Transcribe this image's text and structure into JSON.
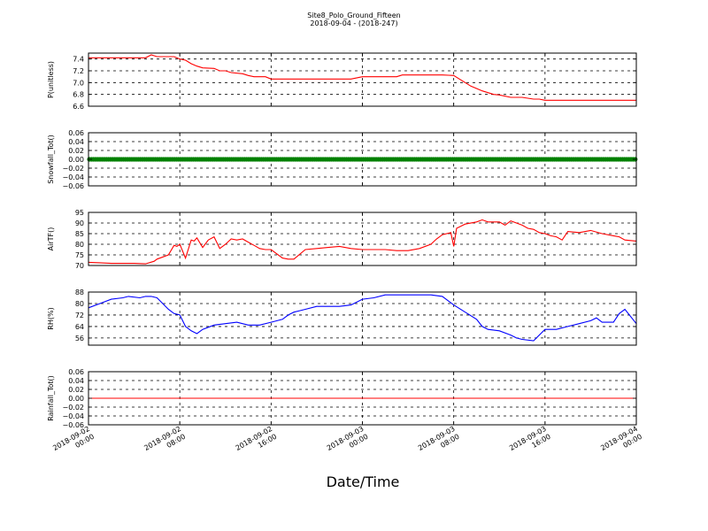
{
  "figure": {
    "title_line1": "Site8_Polo_Ground_Fifteen",
    "title_line2": "2018-09-04 - (2018-247)",
    "xlabel": "Date/Time"
  },
  "x_axis": {
    "start": "2018-09-02 00:00",
    "end": "2018-09-04 00:00",
    "tick_hours": [
      0,
      8,
      16,
      24,
      32,
      40,
      48
    ],
    "ticks": [
      {
        "line1": "2018-09-02",
        "line2": "00:00"
      },
      {
        "line1": "2018-09-02",
        "line2": "08:00"
      },
      {
        "line1": "2018-09-02",
        "line2": "16:00"
      },
      {
        "line1": "2018-09-03",
        "line2": "00:00"
      },
      {
        "line1": "2018-09-03",
        "line2": "08:00"
      },
      {
        "line1": "2018-09-03",
        "line2": "16:00"
      },
      {
        "line1": "2018-09-04",
        "line2": "00:00"
      }
    ]
  },
  "chart_data": [
    {
      "type": "line",
      "ylabel": "P(unitless)",
      "ylim": [
        6.6,
        7.5
      ],
      "yticks": [
        6.6,
        6.8,
        7.0,
        7.2,
        7.4
      ],
      "ytick_labels": [
        "6.6",
        "6.8",
        "7.0",
        "7.2",
        "7.4"
      ],
      "grid": true,
      "series": [
        {
          "color": "#ff0000",
          "marker": "none",
          "x": [
            "2018-09-02 00:00",
            "2018-09-02 01:00",
            "2018-09-02 03:00",
            "2018-09-02 05:00",
            "2018-09-02 05:30",
            "2018-09-02 06:00",
            "2018-09-02 06:30",
            "2018-09-02 07:30",
            "2018-09-02 08:00",
            "2018-09-02 08:30",
            "2018-09-02 09:00",
            "2018-09-02 09:30",
            "2018-09-02 10:00",
            "2018-09-02 11:00",
            "2018-09-02 11:30",
            "2018-09-02 12:00",
            "2018-09-02 12:30",
            "2018-09-02 13:30",
            "2018-09-02 14:00",
            "2018-09-02 14:30",
            "2018-09-02 15:30",
            "2018-09-02 16:00",
            "2018-09-02 17:00",
            "2018-09-02 18:00",
            "2018-09-02 19:00",
            "2018-09-02 20:00",
            "2018-09-02 22:00",
            "2018-09-02 23:00",
            "2018-09-03 00:00",
            "2018-09-03 01:00",
            "2018-09-03 02:00",
            "2018-09-03 03:00",
            "2018-09-03 03:30",
            "2018-09-03 05:00",
            "2018-09-03 06:00",
            "2018-09-03 07:00",
            "2018-09-03 08:00",
            "2018-09-03 08:30",
            "2018-09-03 09:00",
            "2018-09-03 09:30",
            "2018-09-03 10:00",
            "2018-09-03 10:30",
            "2018-09-03 11:00",
            "2018-09-03 11:30",
            "2018-09-03 12:00",
            "2018-09-03 13:00",
            "2018-09-03 14:00",
            "2018-09-03 15:00",
            "2018-09-03 15:30",
            "2018-09-03 16:00",
            "2018-09-03 17:00",
            "2018-09-03 18:00",
            "2018-09-03 20:00",
            "2018-09-03 22:00",
            "2018-09-04 00:00"
          ],
          "y": [
            7.42,
            7.42,
            7.42,
            7.42,
            7.47,
            7.44,
            7.44,
            7.44,
            7.4,
            7.38,
            7.32,
            7.28,
            7.25,
            7.24,
            7.2,
            7.2,
            7.17,
            7.15,
            7.12,
            7.1,
            7.1,
            7.06,
            7.06,
            7.06,
            7.06,
            7.06,
            7.06,
            7.06,
            7.1,
            7.1,
            7.1,
            7.1,
            7.13,
            7.13,
            7.13,
            7.13,
            7.12,
            7.06,
            7.0,
            6.94,
            6.9,
            6.86,
            6.83,
            6.8,
            6.79,
            6.75,
            6.75,
            6.72,
            6.72,
            6.7,
            6.7,
            6.7,
            6.7,
            6.7,
            6.7
          ]
        }
      ]
    },
    {
      "type": "scatter",
      "ylabel": "Snowfall_Tot()",
      "ylim": [
        -0.06,
        0.06
      ],
      "yticks": [
        -0.06,
        -0.04,
        -0.02,
        0.0,
        0.02,
        0.04,
        0.06
      ],
      "ytick_labels": [
        "−0.06",
        "−0.04",
        "−0.02",
        "0.00",
        "0.02",
        "0.04",
        "0.06"
      ],
      "grid": true,
      "series": [
        {
          "color": "#008000",
          "marker": "circle",
          "constant_y": 0.0
        }
      ]
    },
    {
      "type": "line",
      "ylabel": "AirTF()",
      "ylim": [
        70,
        95
      ],
      "yticks": [
        70,
        75,
        80,
        85,
        90,
        95
      ],
      "ytick_labels": [
        "70",
        "75",
        "80",
        "85",
        "90",
        "95"
      ],
      "grid": true,
      "series": [
        {
          "color": "#ff0000",
          "marker": "none",
          "x": [
            "2018-09-02 00:00",
            "2018-09-02 01:00",
            "2018-09-02 02:00",
            "2018-09-02 03:00",
            "2018-09-02 04:00",
            "2018-09-02 05:00",
            "2018-09-02 05:45",
            "2018-09-02 06:00",
            "2018-09-02 07:00",
            "2018-09-02 07:30",
            "2018-09-02 07:45",
            "2018-09-02 08:00",
            "2018-09-02 08:30",
            "2018-09-02 09:00",
            "2018-09-02 09:15",
            "2018-09-02 09:30",
            "2018-09-02 10:00",
            "2018-09-02 10:30",
            "2018-09-02 11:00",
            "2018-09-02 11:30",
            "2018-09-02 12:00",
            "2018-09-02 12:30",
            "2018-09-02 13:00",
            "2018-09-02 13:30",
            "2018-09-02 14:00",
            "2018-09-02 14:30",
            "2018-09-02 15:00",
            "2018-09-02 15:30",
            "2018-09-02 16:00",
            "2018-09-02 17:00",
            "2018-09-02 17:30",
            "2018-09-02 18:00",
            "2018-09-02 19:00",
            "2018-09-02 20:00",
            "2018-09-02 21:00",
            "2018-09-02 22:00",
            "2018-09-02 23:00",
            "2018-09-03 00:00",
            "2018-09-03 02:00",
            "2018-09-03 03:00",
            "2018-09-03 04:00",
            "2018-09-03 05:00",
            "2018-09-03 06:00",
            "2018-09-03 06:30",
            "2018-09-03 07:00",
            "2018-09-03 07:45",
            "2018-09-03 08:00",
            "2018-09-03 08:15",
            "2018-09-03 09:00",
            "2018-09-03 10:00",
            "2018-09-03 10:30",
            "2018-09-03 11:00",
            "2018-09-03 12:00",
            "2018-09-03 12:30",
            "2018-09-03 13:00",
            "2018-09-03 14:00",
            "2018-09-03 14:30",
            "2018-09-03 15:00",
            "2018-09-03 15:30",
            "2018-09-03 16:00",
            "2018-09-03 16:30",
            "2018-09-03 17:00",
            "2018-09-03 17:30",
            "2018-09-03 18:00",
            "2018-09-03 19:00",
            "2018-09-03 20:00",
            "2018-09-03 21:00",
            "2018-09-03 22:00",
            "2018-09-03 22:30",
            "2018-09-03 23:00",
            "2018-09-04 00:00"
          ],
          "y": [
            71.5,
            71.3,
            71.0,
            71.0,
            71.0,
            70.8,
            72.0,
            73.0,
            75.0,
            79.5,
            79.0,
            80.0,
            73.5,
            82.0,
            81.5,
            83.0,
            78.5,
            82.0,
            83.5,
            78.0,
            80.0,
            82.5,
            82.0,
            82.5,
            81.0,
            79.5,
            78.0,
            77.5,
            77.5,
            73.5,
            73.0,
            73.0,
            77.5,
            78.0,
            78.5,
            79.0,
            78.0,
            77.5,
            77.5,
            77.0,
            77.0,
            78.0,
            80.0,
            82.5,
            84.5,
            85.5,
            79.0,
            87.5,
            89.5,
            90.5,
            91.5,
            90.5,
            90.5,
            89.0,
            91.0,
            89.0,
            87.5,
            87.0,
            85.5,
            85.0,
            84.0,
            83.5,
            82.0,
            86.0,
            85.5,
            86.5,
            85.0,
            84.0,
            83.5,
            82.0,
            81.5
          ]
        }
      ]
    },
    {
      "type": "line",
      "ylabel": "RH(%)",
      "ylim": [
        51,
        88
      ],
      "yticks": [
        56,
        64,
        72,
        80,
        88
      ],
      "ytick_labels": [
        "56",
        "64",
        "72",
        "80",
        "88"
      ],
      "grid": true,
      "series": [
        {
          "color": "#0000ff",
          "marker": "none",
          "x": [
            "2018-09-02 00:00",
            "2018-09-02 01:00",
            "2018-09-02 02:00",
            "2018-09-02 03:00",
            "2018-09-02 03:30",
            "2018-09-02 04:30",
            "2018-09-02 05:00",
            "2018-09-02 05:30",
            "2018-09-02 06:00",
            "2018-09-02 07:00",
            "2018-09-02 07:30",
            "2018-09-02 08:00",
            "2018-09-02 08:30",
            "2018-09-02 09:00",
            "2018-09-02 09:30",
            "2018-09-02 10:00",
            "2018-09-02 11:00",
            "2018-09-02 12:00",
            "2018-09-02 13:00",
            "2018-09-02 14:00",
            "2018-09-02 15:00",
            "2018-09-02 16:00",
            "2018-09-02 17:00",
            "2018-09-02 17:30",
            "2018-09-02 18:00",
            "2018-09-02 18:30",
            "2018-09-02 19:00",
            "2018-09-02 20:00",
            "2018-09-02 21:00",
            "2018-09-02 22:00",
            "2018-09-02 23:00",
            "2018-09-03 00:00",
            "2018-09-03 01:00",
            "2018-09-03 02:00",
            "2018-09-03 03:00",
            "2018-09-03 04:00",
            "2018-09-03 05:00",
            "2018-09-03 06:00",
            "2018-09-03 07:00",
            "2018-09-03 08:00",
            "2018-09-03 09:00",
            "2018-09-03 10:00",
            "2018-09-03 10:30",
            "2018-09-03 11:00",
            "2018-09-03 12:00",
            "2018-09-03 13:00",
            "2018-09-03 13:30",
            "2018-09-03 14:00",
            "2018-09-03 15:00",
            "2018-09-03 16:00",
            "2018-09-03 17:00",
            "2018-09-03 18:00",
            "2018-09-03 19:00",
            "2018-09-03 20:00",
            "2018-09-03 20:30",
            "2018-09-03 21:00",
            "2018-09-03 22:00",
            "2018-09-03 22:30",
            "2018-09-03 23:00",
            "2018-09-04 00:00"
          ],
          "y": [
            77,
            80,
            83,
            84,
            85,
            84,
            85,
            85,
            84,
            76,
            73,
            72,
            64,
            61,
            59,
            62,
            65,
            66,
            67,
            65,
            65,
            67,
            69,
            72,
            74,
            75,
            76,
            78,
            78,
            78,
            79,
            83,
            84,
            86,
            86,
            86,
            86,
            86,
            85,
            79,
            74,
            69,
            64,
            62,
            61,
            58,
            56,
            55,
            54,
            62,
            62,
            64,
            66,
            68,
            70,
            67,
            67,
            73,
            76,
            66
          ]
        }
      ]
    },
    {
      "type": "line",
      "ylabel": "Rainfall_Tot()",
      "ylim": [
        -0.06,
        0.06
      ],
      "yticks": [
        -0.06,
        -0.04,
        -0.02,
        0.0,
        0.02,
        0.04,
        0.06
      ],
      "ytick_labels": [
        "−0.06",
        "−0.04",
        "−0.02",
        "0.00",
        "0.02",
        "0.04",
        "0.06"
      ],
      "grid": true,
      "series": [
        {
          "color": "#ff0000",
          "marker": "none",
          "x": [
            "2018-09-02 00:00",
            "2018-09-04 00:00"
          ],
          "y": [
            0.0,
            0.0
          ]
        }
      ]
    }
  ]
}
